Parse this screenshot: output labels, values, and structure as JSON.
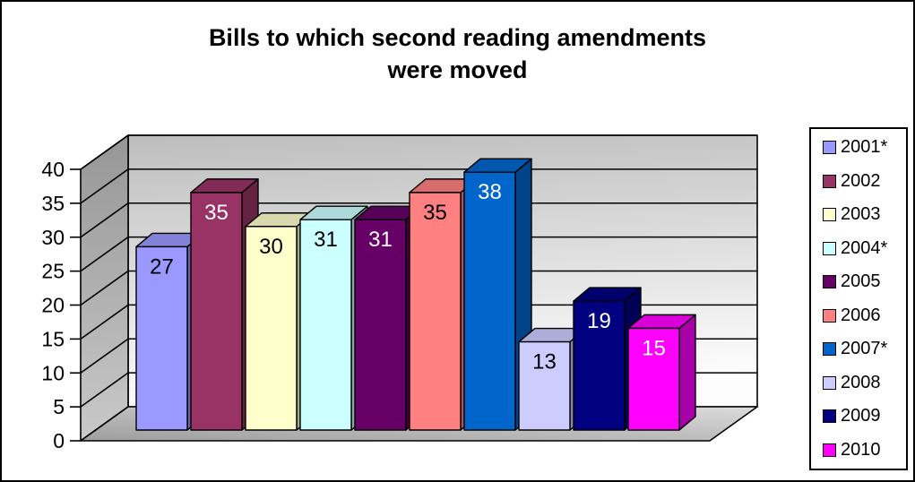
{
  "window": {
    "background": "#ffffff",
    "border_color": "#000000"
  },
  "chart_data": {
    "type": "bar",
    "style": "3d-column",
    "title": "Bills to which second reading amendments were moved",
    "title_lines": [
      "Bills to which second reading amendments",
      "were moved"
    ],
    "categories": [
      "2001*",
      "2002",
      "2003",
      "2004*",
      "2005",
      "2006",
      "2007*",
      "2008",
      "2009",
      "2010"
    ],
    "values": [
      27,
      35,
      30,
      31,
      31,
      35,
      38,
      13,
      19,
      15
    ],
    "series": [
      {
        "name": "2001*",
        "value": 27,
        "color": "#9999FF",
        "label_color": "#000000"
      },
      {
        "name": "2002",
        "value": 35,
        "color": "#993366",
        "label_color": "#FFFFFF"
      },
      {
        "name": "2003",
        "value": 30,
        "color": "#FFFFCC",
        "label_color": "#000000"
      },
      {
        "name": "2004*",
        "value": 31,
        "color": "#CCFFFF",
        "label_color": "#000000"
      },
      {
        "name": "2005",
        "value": 31,
        "color": "#660066",
        "label_color": "#FFFFFF"
      },
      {
        "name": "2006",
        "value": 35,
        "color": "#FF8080",
        "label_color": "#000000"
      },
      {
        "name": "2007*",
        "value": 38,
        "color": "#0066CC",
        "label_color": "#FFFFFF"
      },
      {
        "name": "2008",
        "value": 13,
        "color": "#CCCCFF",
        "label_color": "#000000"
      },
      {
        "name": "2009",
        "value": 19,
        "color": "#000080",
        "label_color": "#FFFFFF"
      },
      {
        "name": "2010",
        "value": 15,
        "color": "#FF00FF",
        "label_color": "#FFFFFF"
      }
    ],
    "xlabel": "",
    "ylabel": "",
    "ylim": [
      0,
      40
    ],
    "yticks": [
      0,
      5,
      10,
      15,
      20,
      25,
      30,
      35,
      40
    ],
    "grid": true,
    "legend_position": "right",
    "wall_colors": {
      "back_wall_top": "#bdbdbd",
      "back_wall_bottom": "#fdfdfd",
      "side_wall_top": "#969696",
      "side_wall_bottom": "#c9c9c9",
      "floor_dark": "#9e9e9e",
      "floor_light": "#dcdcdc",
      "line_color": "#000000"
    }
  }
}
